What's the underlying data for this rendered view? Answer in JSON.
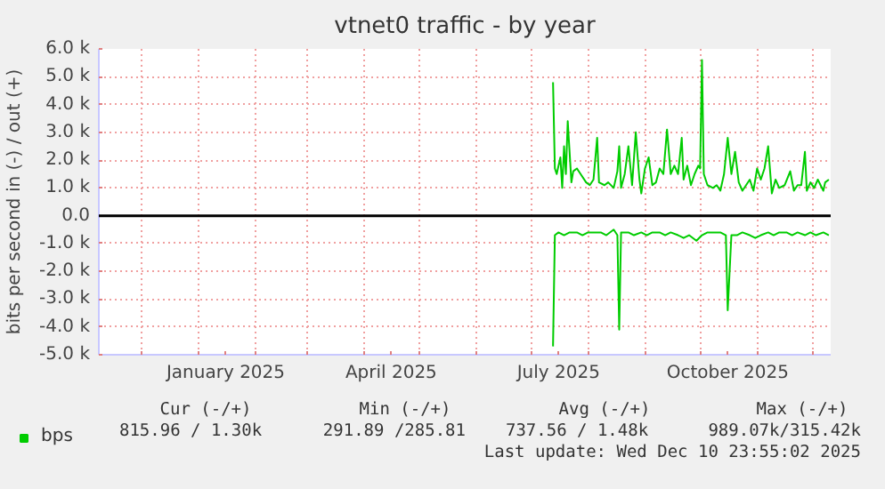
{
  "chart_data": {
    "type": "line",
    "title": "vtnet0 traffic - by year",
    "ylabel": "bits per second in (-) / out (+)",
    "xlim": [
      "2024-11-08",
      "2025-12-11"
    ],
    "xticks": [
      {
        "value": "2024-12-01",
        "label": null
      },
      {
        "value": "2025-01-01",
        "label": null
      },
      {
        "value": "2025-01-16",
        "label": "January 2025"
      },
      {
        "value": "2025-02-01",
        "label": null
      },
      {
        "value": "2025-03-01",
        "label": null
      },
      {
        "value": "2025-04-01",
        "label": null
      },
      {
        "value": "2025-04-16",
        "label": "April 2025"
      },
      {
        "value": "2025-05-01",
        "label": null
      },
      {
        "value": "2025-06-01",
        "label": null
      },
      {
        "value": "2025-07-01",
        "label": null
      },
      {
        "value": "2025-07-16",
        "label": "July 2025"
      },
      {
        "value": "2025-08-01",
        "label": null
      },
      {
        "value": "2025-09-01",
        "label": null
      },
      {
        "value": "2025-10-01",
        "label": null
      },
      {
        "value": "2025-10-16",
        "label": "October 2025"
      },
      {
        "value": "2025-11-01",
        "label": null
      },
      {
        "value": "2025-12-01",
        "label": null
      }
    ],
    "ylim": [
      -5000,
      6000
    ],
    "yticks": [
      {
        "value": -5000,
        "label": "-5.0 k"
      },
      {
        "value": -4000,
        "label": "-4.0 k"
      },
      {
        "value": -3000,
        "label": "-3.0 k"
      },
      {
        "value": -2000,
        "label": "-2.0 k"
      },
      {
        "value": -1000,
        "label": "-1.0 k"
      },
      {
        "value": 0,
        "label": "0.0"
      },
      {
        "value": 1000,
        "label": "1.0 k"
      },
      {
        "value": 2000,
        "label": "2.0 k"
      },
      {
        "value": 3000,
        "label": "3.0 k"
      },
      {
        "value": 4000,
        "label": "4.0 k"
      },
      {
        "value": 5000,
        "label": "5.0 k"
      },
      {
        "value": 6000,
        "label": "6.0 k"
      }
    ],
    "grid": true,
    "legend": "bottom",
    "ref_lines": [
      {
        "axis": "y",
        "value": 0,
        "color": "#000000"
      }
    ],
    "series": [
      {
        "name": "bps",
        "color": "#00cc00",
        "x": [
          "2025-07-13",
          "2025-07-14",
          "2025-07-15",
          "2025-07-17",
          "2025-07-18",
          "2025-07-19",
          "2025-07-20",
          "2025-07-21",
          "2025-07-23",
          "2025-07-24",
          "2025-07-26",
          "2025-07-28",
          "2025-07-31",
          "2025-08-02",
          "2025-08-04",
          "2025-08-06",
          "2025-08-07",
          "2025-08-10",
          "2025-08-12",
          "2025-08-15",
          "2025-08-17",
          "2025-08-18",
          "2025-08-19",
          "2025-08-21",
          "2025-08-23",
          "2025-08-25",
          "2025-08-27",
          "2025-08-29",
          "2025-08-30",
          "2025-09-01",
          "2025-09-03",
          "2025-09-05",
          "2025-09-07",
          "2025-09-09",
          "2025-09-11",
          "2025-09-13",
          "2025-09-15",
          "2025-09-17",
          "2025-09-19",
          "2025-09-21",
          "2025-09-22",
          "2025-09-24",
          "2025-09-26",
          "2025-09-28",
          "2025-09-30",
          "2025-10-01",
          "2025-10-02",
          "2025-10-03",
          "2025-10-05",
          "2025-10-08",
          "2025-10-10",
          "2025-10-12",
          "2025-10-14",
          "2025-10-16",
          "2025-10-18",
          "2025-10-20",
          "2025-10-22",
          "2025-10-24",
          "2025-10-26",
          "2025-10-28",
          "2025-10-30",
          "2025-11-01",
          "2025-11-03",
          "2025-11-05",
          "2025-11-07",
          "2025-11-09",
          "2025-11-11",
          "2025-11-13",
          "2025-11-16",
          "2025-11-19",
          "2025-11-21",
          "2025-11-23",
          "2025-11-25",
          "2025-11-27",
          "2025-11-28",
          "2025-11-30",
          "2025-12-02",
          "2025-12-04",
          "2025-12-07",
          "2025-12-08",
          "2025-12-10"
        ],
        "values": [
          4800,
          1700,
          1500,
          2100,
          1000,
          2500,
          1500,
          3400,
          1200,
          1600,
          1700,
          1500,
          1200,
          1100,
          1300,
          2800,
          1200,
          1100,
          1200,
          1000,
          1600,
          2500,
          1000,
          1500,
          2500,
          1100,
          3000,
          1300,
          800,
          1700,
          2100,
          1100,
          1200,
          1700,
          1500,
          3100,
          1500,
          1800,
          1500,
          2800,
          1300,
          1800,
          1100,
          1500,
          1800,
          1700,
          5600,
          1500,
          1100,
          1000,
          1100,
          900,
          1500,
          2800,
          1500,
          2300,
          1200,
          900,
          1100,
          1300,
          900,
          1700,
          1300,
          1700,
          2500,
          800,
          1300,
          1000,
          1100,
          1600,
          900,
          1100,
          1100,
          2300,
          900,
          1200,
          1000,
          1300,
          900,
          1200,
          1300
        ]
      },
      {
        "color": "#00cc00",
        "x": [
          "2025-07-13",
          "2025-07-14",
          "2025-07-16",
          "2025-07-19",
          "2025-07-22",
          "2025-07-26",
          "2025-07-29",
          "2025-08-01",
          "2025-08-05",
          "2025-08-08",
          "2025-08-11",
          "2025-08-15",
          "2025-08-17",
          "2025-08-18",
          "2025-08-19",
          "2025-08-23",
          "2025-08-26",
          "2025-08-30",
          "2025-09-02",
          "2025-09-05",
          "2025-09-09",
          "2025-09-12",
          "2025-09-15",
          "2025-09-19",
          "2025-09-22",
          "2025-09-25",
          "2025-09-29",
          "2025-10-02",
          "2025-10-05",
          "2025-10-09",
          "2025-10-12",
          "2025-10-15",
          "2025-10-16",
          "2025-10-18",
          "2025-10-21",
          "2025-10-24",
          "2025-10-28",
          "2025-10-31",
          "2025-11-03",
          "2025-11-07",
          "2025-11-10",
          "2025-11-13",
          "2025-11-17",
          "2025-11-20",
          "2025-11-23",
          "2025-11-27",
          "2025-11-30",
          "2025-12-03",
          "2025-12-07",
          "2025-12-10"
        ],
        "values": [
          -4700,
          -700,
          -600,
          -700,
          -600,
          -600,
          -700,
          -600,
          -600,
          -600,
          -700,
          -500,
          -700,
          -4100,
          -600,
          -600,
          -700,
          -600,
          -700,
          -600,
          -600,
          -700,
          -600,
          -700,
          -800,
          -700,
          -900,
          -700,
          -600,
          -600,
          -600,
          -700,
          -3400,
          -700,
          -700,
          -600,
          -700,
          -800,
          -700,
          -600,
          -700,
          -600,
          -600,
          -700,
          -600,
          -700,
          -600,
          -700,
          -600,
          -700
        ]
      }
    ],
    "annotations": [
      "Cur (-/+)",
      "Min (-/+)",
      "Avg (-/+)",
      "Max (-/+)",
      "815.96 /   1.30k",
      "291.89 /285.81",
      "737.56 /   1.48k",
      "989.07k/315.42k",
      "Last update: Wed Dec 10 23:55:02 2025"
    ]
  }
}
